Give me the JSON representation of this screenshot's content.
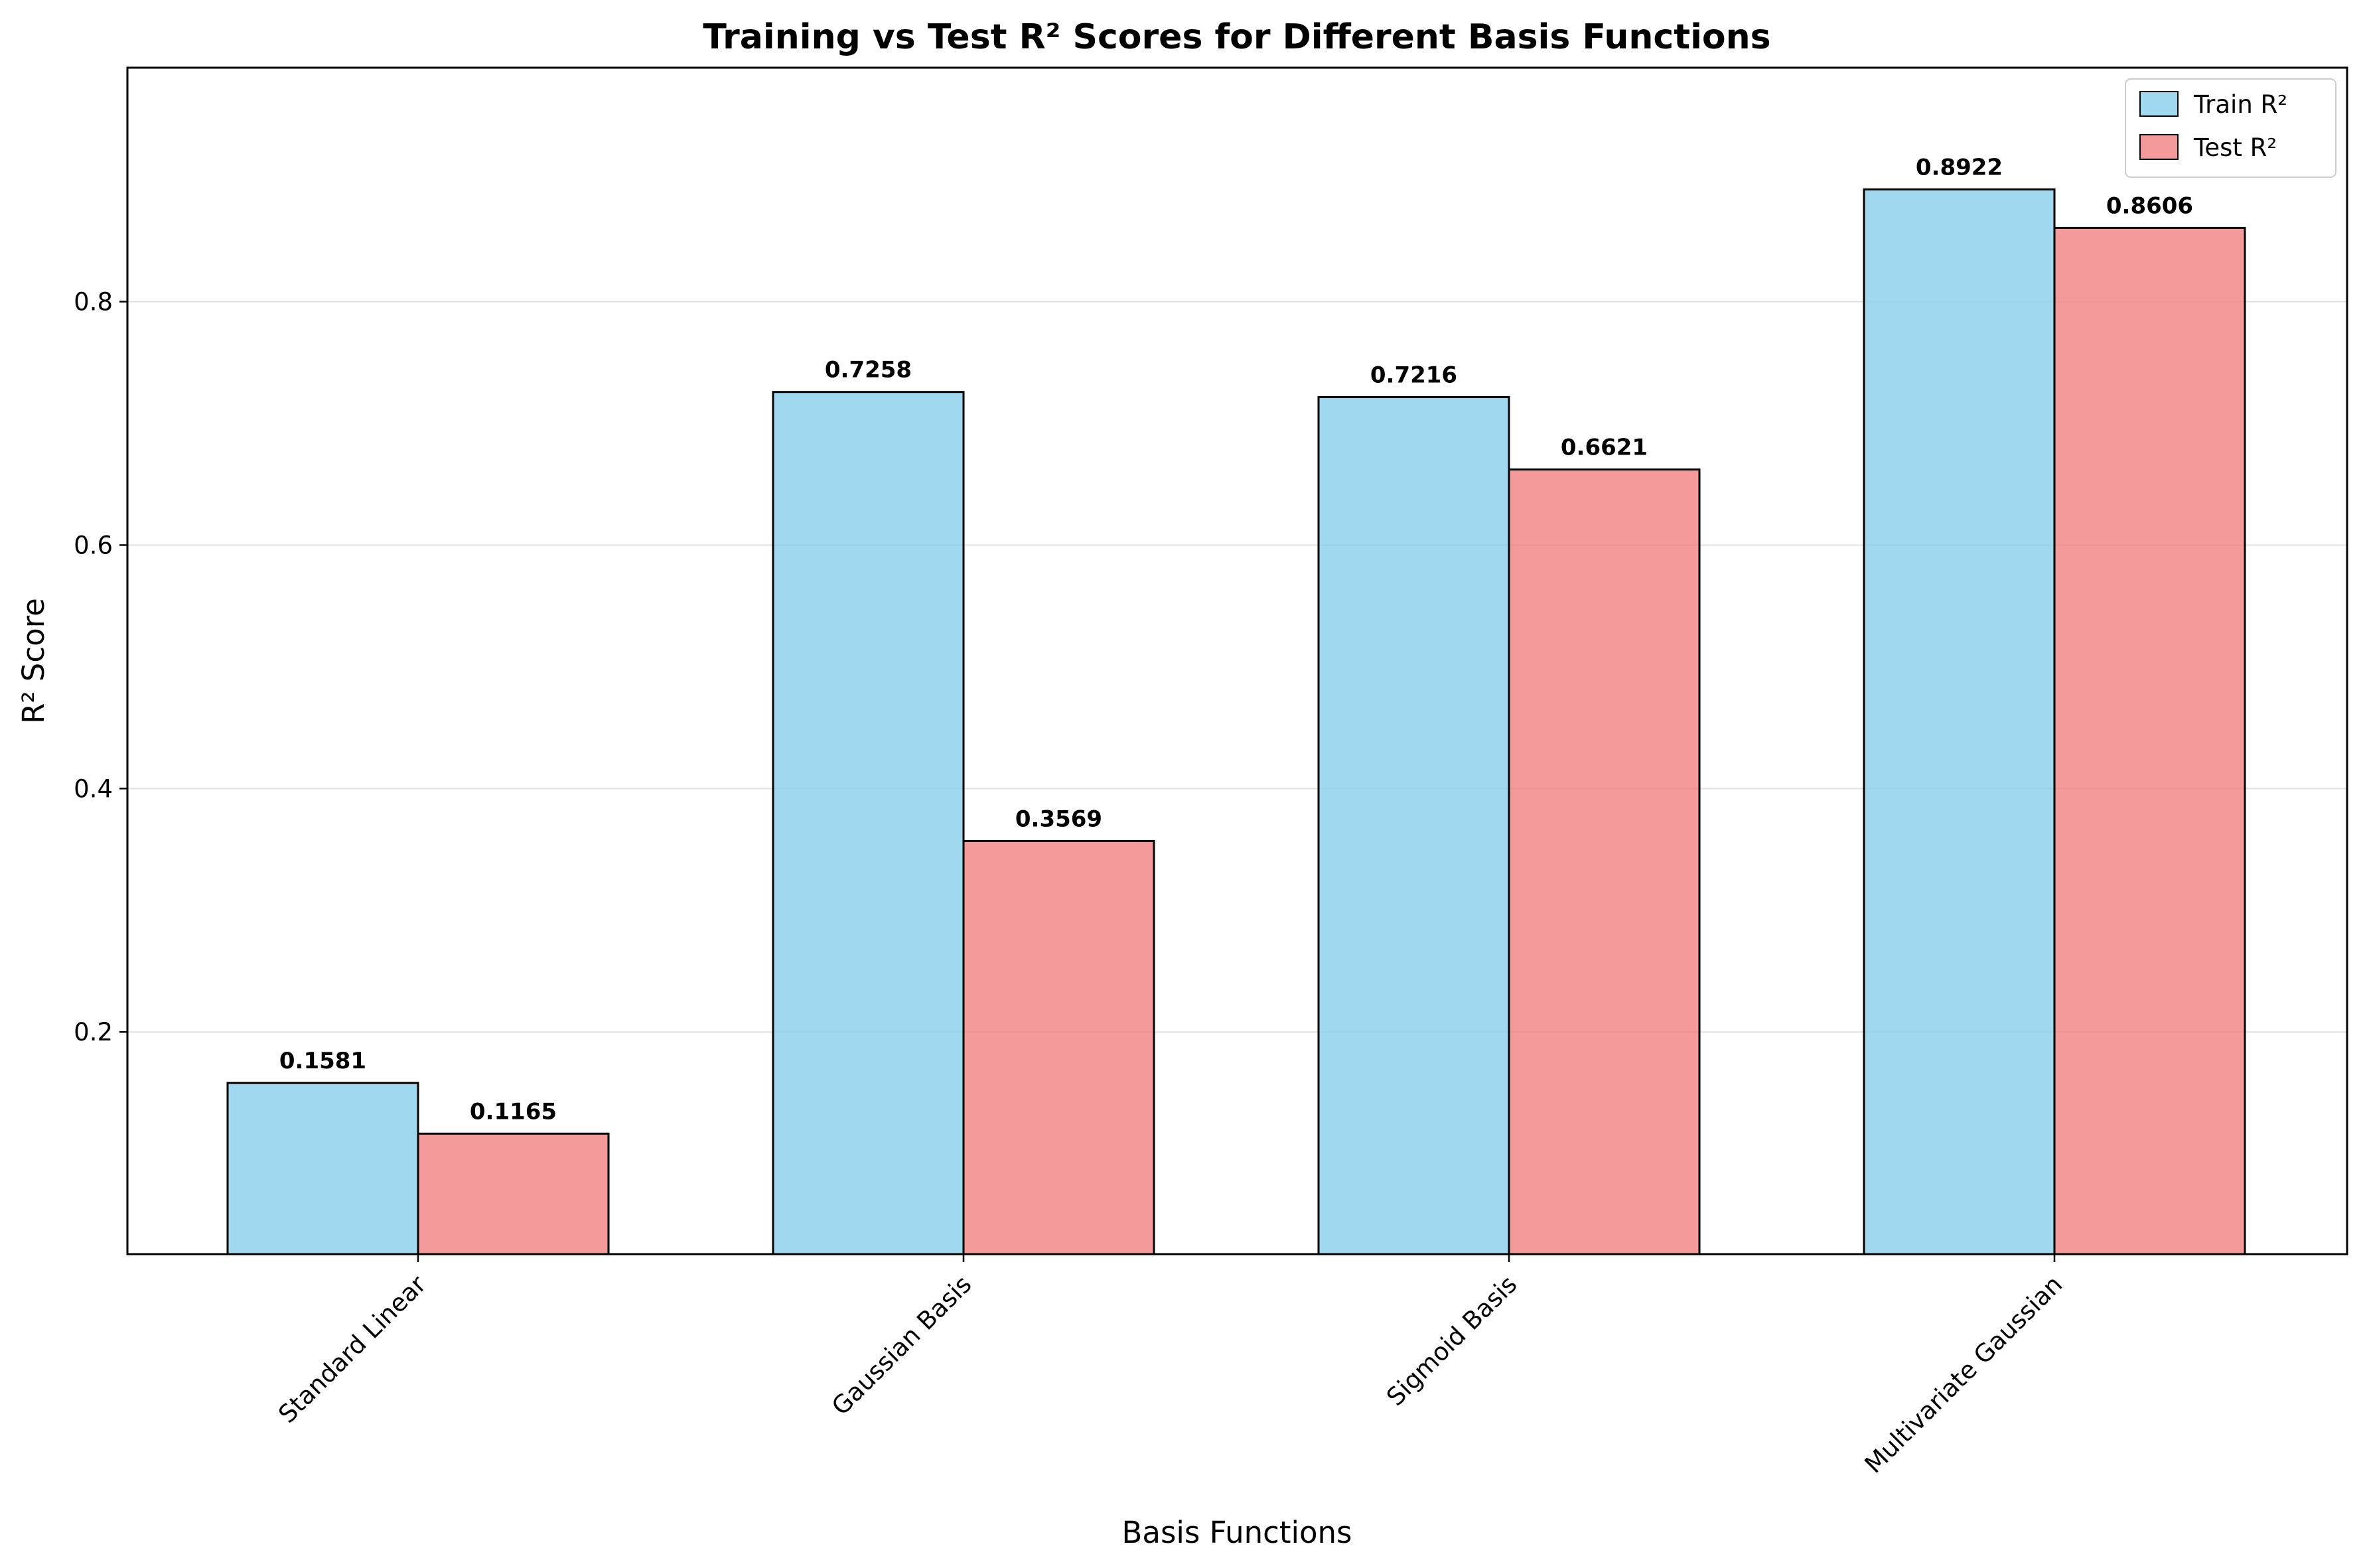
{
  "chart_data": {
    "type": "bar",
    "title": "Training vs Test R² Scores for Different Basis Functions",
    "xlabel": "Basis Functions",
    "ylabel": "R² Score",
    "categories": [
      "Standard Linear",
      "Gaussian Basis",
      "Sigmoid Basis",
      "Multivariate Gaussian"
    ],
    "series": [
      {
        "name": "Train R²",
        "values": [
          0.1581,
          0.7258,
          0.7216,
          0.8922
        ],
        "labels": [
          "0.1581",
          "0.7258",
          "0.7216",
          "0.8922"
        ],
        "color": "#87CEEB"
      },
      {
        "name": "Test R²",
        "values": [
          0.1165,
          0.3569,
          0.6621,
          0.8606
        ],
        "labels": [
          "0.1165",
          "0.3569",
          "0.6621",
          "0.8606"
        ],
        "color": "#F08080"
      }
    ],
    "ylim": [
      0.0175,
      0.9922
    ],
    "yticks": [
      0.2,
      0.4,
      0.6,
      0.8
    ],
    "ytick_labels": [
      "0.2",
      "0.4",
      "0.6",
      "0.8"
    ],
    "grid": "y",
    "legend_position": "upper right",
    "bar_edge_color": "#000000",
    "grid_color": "#e0e0e0"
  }
}
